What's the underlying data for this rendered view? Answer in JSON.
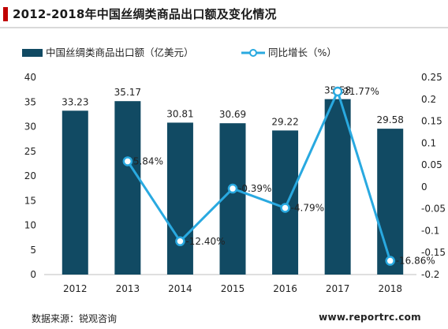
{
  "title": "2012-2018年中国丝绸类商品出口额及变化情况",
  "source": "数据来源：锐观咨询",
  "website": "www.reportrc.com",
  "colors": {
    "bar": "#114a63",
    "line": "#29a9e0",
    "accent": "#c00000"
  },
  "chart_data": {
    "type": "bar",
    "categories": [
      "2012",
      "2013",
      "2014",
      "2015",
      "2016",
      "2017",
      "2018"
    ],
    "series": [
      {
        "name": "中国丝绸类商品出口额（亿美元）",
        "type": "bar",
        "axis": "left",
        "values": [
          33.23,
          35.17,
          30.81,
          30.69,
          29.22,
          35.58,
          29.58
        ],
        "labels": [
          "33.23",
          "35.17",
          "30.81",
          "30.69",
          "29.22",
          "35.58",
          "29.58"
        ]
      },
      {
        "name": "同比增长（%）",
        "type": "line",
        "axis": "right",
        "values": [
          null,
          0.0584,
          -0.124,
          -0.0039,
          -0.0479,
          0.2177,
          -0.1686
        ],
        "labels": [
          "",
          "5.84%",
          "-12.40%",
          "-0.39%",
          "-4.79%",
          "21.77%",
          "-16.86%"
        ]
      }
    ],
    "y_left": {
      "min": 0,
      "max": 40,
      "ticks": [
        "0",
        "5",
        "10",
        "15",
        "20",
        "25",
        "30",
        "35",
        "40"
      ]
    },
    "y_right": {
      "min": -0.2,
      "max": 0.25,
      "ticks": [
        "-0.2",
        "-0.15",
        "-0.1",
        "-0.05",
        "0",
        "0.05",
        "0.1",
        "0.15",
        "0.2",
        "0.25"
      ]
    },
    "legend_position": "top",
    "grid": false
  }
}
